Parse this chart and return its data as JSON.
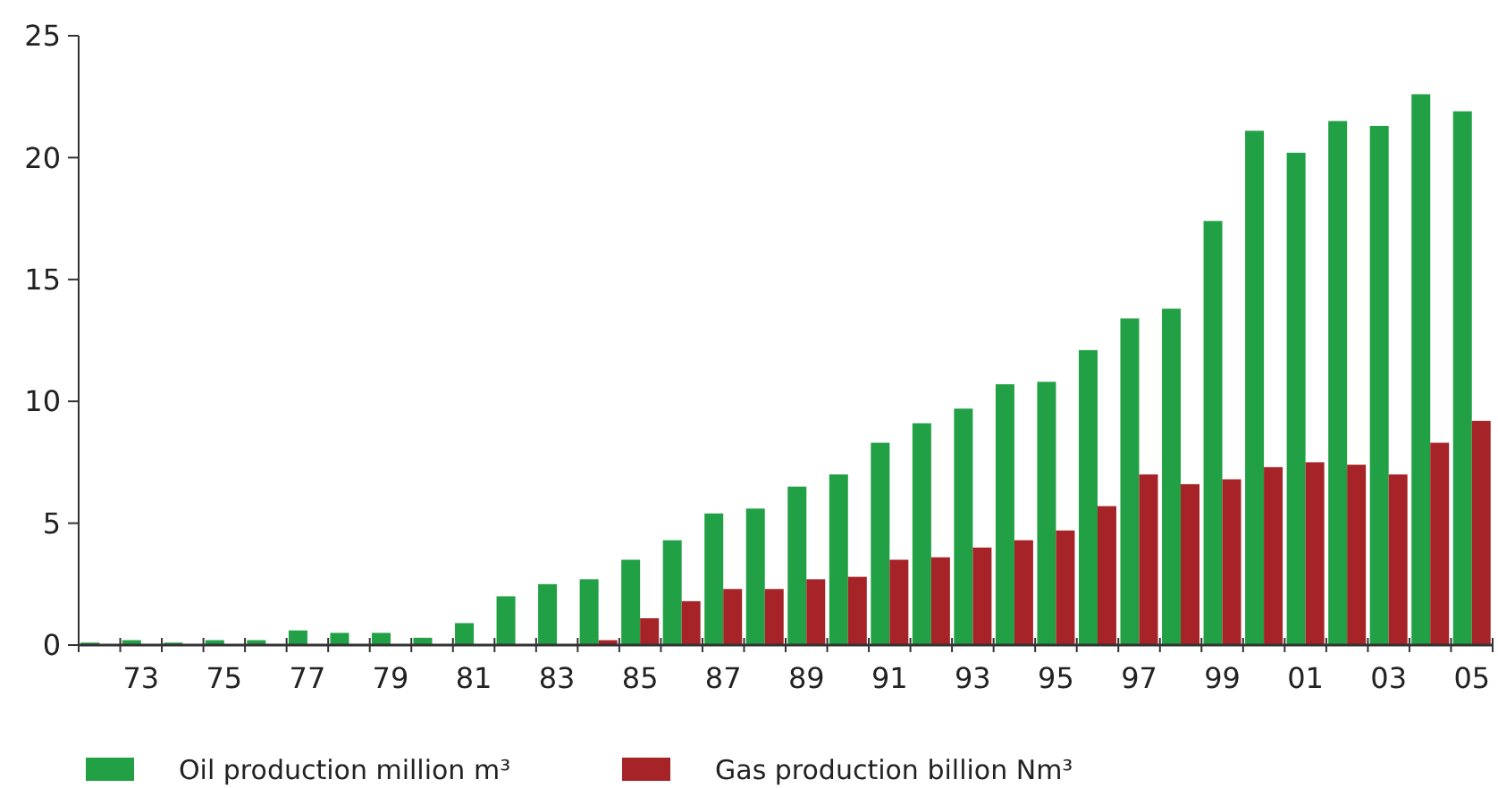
{
  "chart_data": {
    "type": "bar",
    "categories": [
      null,
      "73",
      null,
      "75",
      null,
      "77",
      null,
      "79",
      null,
      "81",
      null,
      "83",
      null,
      "85",
      null,
      "87",
      null,
      "89",
      null,
      "91",
      null,
      "93",
      null,
      "95",
      null,
      "97",
      null,
      "99",
      null,
      "01",
      null,
      "03",
      null,
      "05"
    ],
    "series": [
      {
        "name": "Oil production million m³",
        "color": "#21a045",
        "values": [
          0.1,
          0.2,
          0.1,
          0.2,
          0.2,
          0.6,
          0.5,
          0.5,
          0.3,
          0.9,
          2.0,
          2.5,
          2.7,
          3.5,
          4.3,
          5.4,
          5.6,
          6.5,
          7.0,
          8.3,
          9.1,
          9.7,
          10.7,
          10.8,
          12.1,
          13.4,
          13.8,
          17.4,
          21.1,
          20.2,
          21.5,
          21.3,
          22.6,
          21.9
        ]
      },
      {
        "name": "Gas production billion Nm³",
        "color": "#a62328",
        "values": [
          null,
          null,
          null,
          null,
          null,
          null,
          null,
          null,
          null,
          null,
          null,
          null,
          0.2,
          1.1,
          1.8,
          2.3,
          2.3,
          2.7,
          2.8,
          3.5,
          3.6,
          4.0,
          4.3,
          4.7,
          5.7,
          7.0,
          6.6,
          6.8,
          7.3,
          7.5,
          7.4,
          7.0,
          8.3,
          9.2
        ]
      }
    ],
    "ylim": [
      0,
      25
    ],
    "yticks": [
      0,
      5,
      10,
      15,
      20,
      25
    ],
    "grid": false,
    "legend": "bottom left"
  }
}
